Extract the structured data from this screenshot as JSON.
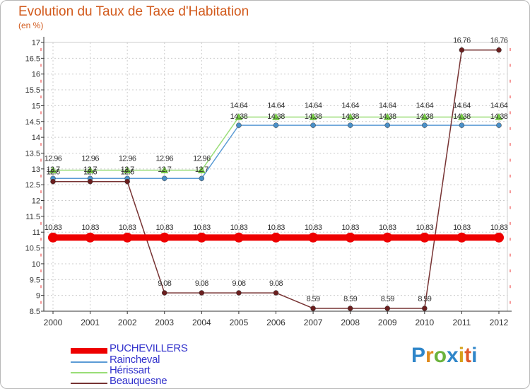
{
  "title": "Evolution du Taux de Taxe d'Habitation",
  "subtitle": "(en %)",
  "chart_data": {
    "type": "line",
    "title": "Evolution du Taux de Taxe d'Habitation",
    "ylabel": "(en %)",
    "xlabel": "",
    "x": [
      "2000",
      "2001",
      "2002",
      "2003",
      "2004",
      "2005",
      "2006",
      "2007",
      "2008",
      "2009",
      "2010",
      "2011",
      "2012"
    ],
    "ylim": [
      8.5,
      17
    ],
    "yticks": [
      "8.5",
      "9",
      "9.5",
      "10",
      "10.5",
      "11",
      "11.5",
      "12",
      "12.5",
      "13",
      "13.5",
      "14",
      "14.5",
      "15",
      "15.5",
      "16",
      "16.5",
      "17"
    ],
    "grid": true,
    "legend_position": "bottom-left",
    "series": [
      {
        "name": "PUCHEVILLERS",
        "color": "#ee0000",
        "values": [
          10.83,
          10.83,
          10.83,
          10.83,
          10.83,
          10.83,
          10.83,
          10.83,
          10.83,
          10.83,
          10.83,
          10.83,
          10.83
        ],
        "labels": [
          "10.83",
          "10.83",
          "10.83",
          "10.83",
          "10.83",
          "10.83",
          "10.83",
          "10.83",
          "10.83",
          "10.83",
          "10.83",
          "10.83",
          "10.83"
        ]
      },
      {
        "name": "Raincheval",
        "color": "#5b9bd5",
        "values": [
          12.7,
          12.7,
          12.7,
          12.7,
          12.7,
          14.38,
          14.38,
          14.38,
          14.38,
          14.38,
          14.38,
          14.38,
          14.38
        ],
        "labels": [
          "12.7",
          "12.7",
          "12.7",
          "12.7",
          "12.7",
          "14.38",
          "14.38",
          "14.38",
          "14.38",
          "14.38",
          "14.38",
          "14.38",
          "14.38"
        ]
      },
      {
        "name": "Hérissart",
        "color": "#99dd77",
        "values": [
          12.96,
          12.96,
          12.96,
          12.96,
          12.96,
          14.64,
          14.64,
          14.64,
          14.64,
          14.64,
          14.64,
          14.64,
          14.64
        ],
        "labels": [
          "12.96",
          "12.96",
          "12.96",
          "12.96",
          "12.96",
          "14.64",
          "14.64",
          "14.64",
          "14.64",
          "14.64",
          "14.64",
          "14.64",
          "14.64"
        ]
      },
      {
        "name": "Beauquesne",
        "color": "#773333",
        "values": [
          12.6,
          12.6,
          12.6,
          9.08,
          9.08,
          9.08,
          9.08,
          8.59,
          8.59,
          8.59,
          8.59,
          16.76,
          16.76
        ],
        "labels": [
          "12.6",
          "12.6",
          "12.6",
          "9.08",
          "9.08",
          "9.08",
          "9.08",
          "8.59",
          "8.59",
          "8.59",
          "8.59",
          "16.76",
          "16.76"
        ]
      }
    ]
  },
  "logo": {
    "letters": [
      "P",
      "r",
      "o",
      "x",
      "i",
      "t",
      "i"
    ],
    "colors": [
      "#2f86c9",
      "#e08a1b",
      "#6bb33c",
      "#2f86c9",
      "#d6a21b",
      "#e05a2a",
      "#2f86c9"
    ]
  }
}
